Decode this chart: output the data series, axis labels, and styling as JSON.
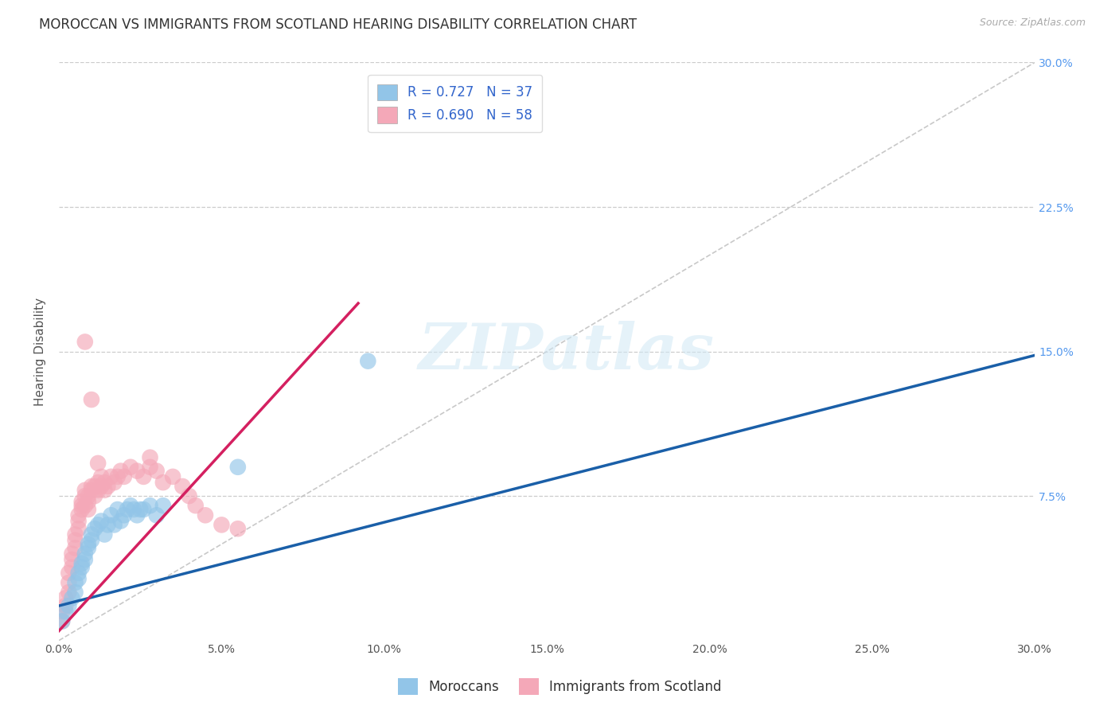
{
  "title": "MOROCCAN VS IMMIGRANTS FROM SCOTLAND HEARING DISABILITY CORRELATION CHART",
  "source": "Source: ZipAtlas.com",
  "ylabel": "Hearing Disability",
  "xlim": [
    0.0,
    0.3
  ],
  "ylim": [
    0.0,
    0.3
  ],
  "xtick_positions": [
    0.0,
    0.05,
    0.1,
    0.15,
    0.2,
    0.25,
    0.3
  ],
  "xtick_labels": [
    "0.0%",
    "5.0%",
    "10.0%",
    "15.0%",
    "20.0%",
    "25.0%",
    "30.0%"
  ],
  "ytick_positions": [
    0.0,
    0.075,
    0.15,
    0.225,
    0.3
  ],
  "ytick_labels_right": [
    "",
    "7.5%",
    "15.0%",
    "22.5%",
    "30.0%"
  ],
  "grid_color": "#cccccc",
  "background_color": "#ffffff",
  "watermark_text": "ZIPatlas",
  "legend_R_blue": "0.727",
  "legend_N_blue": "37",
  "legend_R_pink": "0.690",
  "legend_N_pink": "58",
  "blue_color": "#92c5e8",
  "pink_color": "#f4a8b8",
  "line_blue_color": "#1a5fa8",
  "line_pink_color": "#d42060",
  "diagonal_color": "#bbbbbb",
  "blue_line_x": [
    0.0,
    0.3
  ],
  "blue_line_y": [
    0.018,
    0.148
  ],
  "pink_line_x": [
    0.0,
    0.092
  ],
  "pink_line_y": [
    0.005,
    0.175
  ],
  "blue_scatter_x": [
    0.001,
    0.002,
    0.003,
    0.004,
    0.005,
    0.005,
    0.006,
    0.006,
    0.007,
    0.007,
    0.008,
    0.008,
    0.009,
    0.009,
    0.01,
    0.01,
    0.011,
    0.012,
    0.013,
    0.014,
    0.015,
    0.016,
    0.017,
    0.018,
    0.019,
    0.02,
    0.021,
    0.022,
    0.023,
    0.024,
    0.025,
    0.026,
    0.028,
    0.03,
    0.032,
    0.055,
    0.095
  ],
  "blue_scatter_y": [
    0.01,
    0.015,
    0.018,
    0.022,
    0.025,
    0.03,
    0.032,
    0.035,
    0.038,
    0.04,
    0.042,
    0.045,
    0.048,
    0.05,
    0.052,
    0.055,
    0.058,
    0.06,
    0.062,
    0.055,
    0.06,
    0.065,
    0.06,
    0.068,
    0.062,
    0.065,
    0.068,
    0.07,
    0.068,
    0.065,
    0.068,
    0.068,
    0.07,
    0.065,
    0.07,
    0.09,
    0.145
  ],
  "pink_scatter_x": [
    0.001,
    0.001,
    0.002,
    0.002,
    0.003,
    0.003,
    0.003,
    0.004,
    0.004,
    0.004,
    0.005,
    0.005,
    0.005,
    0.006,
    0.006,
    0.006,
    0.007,
    0.007,
    0.007,
    0.008,
    0.008,
    0.008,
    0.009,
    0.009,
    0.009,
    0.01,
    0.01,
    0.011,
    0.011,
    0.012,
    0.012,
    0.013,
    0.013,
    0.014,
    0.014,
    0.015,
    0.016,
    0.017,
    0.018,
    0.019,
    0.02,
    0.022,
    0.024,
    0.026,
    0.028,
    0.03,
    0.032,
    0.035,
    0.038,
    0.04,
    0.042,
    0.045,
    0.05,
    0.055,
    0.008,
    0.01,
    0.012,
    0.028
  ],
  "pink_scatter_y": [
    0.01,
    0.015,
    0.018,
    0.022,
    0.025,
    0.03,
    0.035,
    0.038,
    0.042,
    0.045,
    0.048,
    0.052,
    0.055,
    0.058,
    0.062,
    0.065,
    0.068,
    0.07,
    0.072,
    0.07,
    0.075,
    0.078,
    0.072,
    0.068,
    0.075,
    0.078,
    0.08,
    0.075,
    0.08,
    0.082,
    0.078,
    0.08,
    0.085,
    0.082,
    0.078,
    0.08,
    0.085,
    0.082,
    0.085,
    0.088,
    0.085,
    0.09,
    0.088,
    0.085,
    0.09,
    0.088,
    0.082,
    0.085,
    0.08,
    0.075,
    0.07,
    0.065,
    0.06,
    0.058,
    0.155,
    0.125,
    0.092,
    0.095
  ],
  "title_fontsize": 12,
  "axis_label_fontsize": 11,
  "tick_fontsize": 10,
  "legend_fontsize": 12,
  "source_fontsize": 9
}
